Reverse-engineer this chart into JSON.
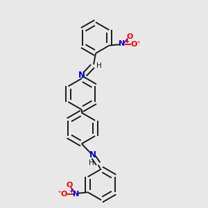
{
  "background_color": "#e8e8e8",
  "bond_color": "#1a1a1a",
  "nitrogen_color": "#0000cd",
  "oxygen_color": "#ff0000",
  "line_width": 1.4,
  "figsize": [
    3.0,
    3.0
  ],
  "dpi": 100,
  "xlim": [
    0.0,
    1.0
  ],
  "ylim": [
    0.0,
    1.0
  ]
}
